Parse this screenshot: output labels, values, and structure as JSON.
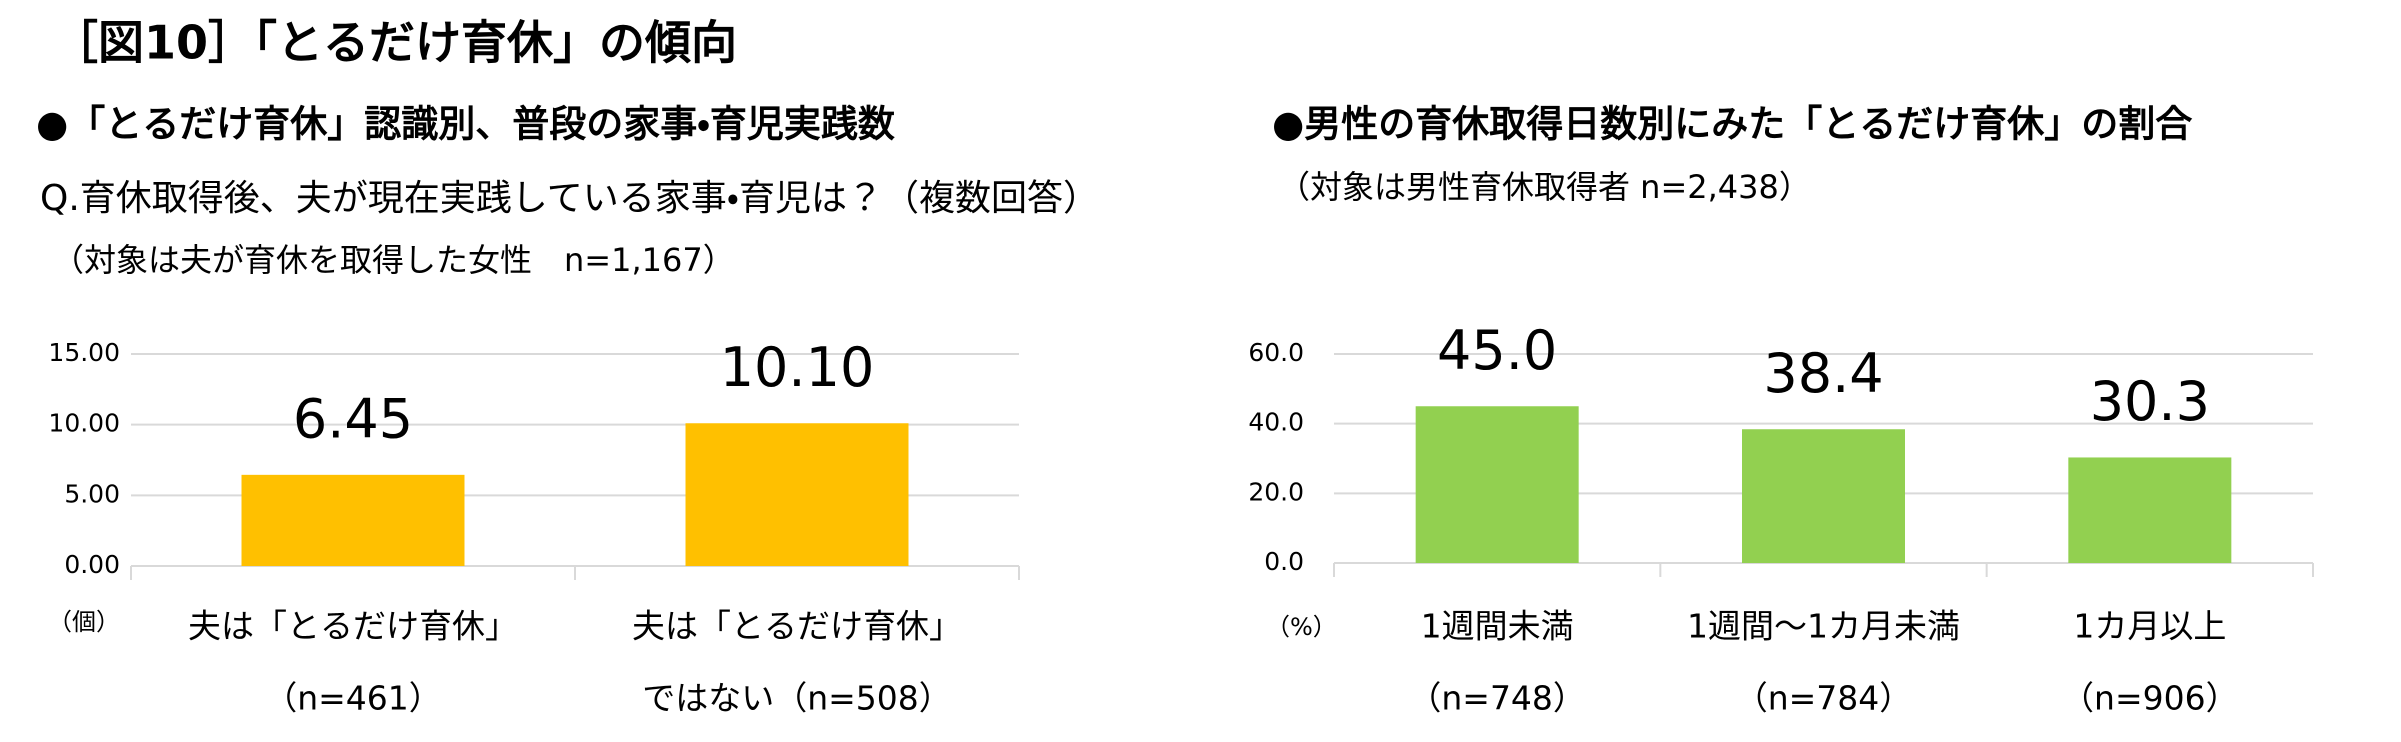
{
  "header": {
    "title": "［図10］「とるだけ育休」の傾向"
  },
  "chart_data": [
    {
      "type": "bar",
      "title": "●「とるだけ育休」認識別、普段の家事・育児実践数",
      "question": "Q.育休取得後、夫が現在実践している家事・育児は？（複数回答）",
      "note": "（対象は夫が育休を取得した女性　n=1,167）",
      "unit_label": "（個）",
      "categories": [
        [
          "夫は「とるだけ育休」",
          "（n=461）"
        ],
        [
          "夫は「とるだけ育休」",
          "ではない（n=508）"
        ]
      ],
      "values": [
        6.45,
        10.1
      ],
      "value_labels": [
        "6.45",
        "10.10"
      ],
      "color": "#ffc000",
      "ylim": [
        0,
        15
      ],
      "yticks": [
        {
          "value": 0,
          "label": "0.00"
        },
        {
          "value": 5,
          "label": "5.00"
        },
        {
          "value": 10,
          "label": "10.00"
        },
        {
          "value": 15,
          "label": "15.00"
        }
      ],
      "grid": true
    },
    {
      "type": "bar",
      "title": "●男性の育休取得日数別にみた「とるだけ育休」の割合",
      "note": "（対象は男性育休取得者 n=2,438）",
      "unit_label": "（%）",
      "categories": [
        [
          "1週間未満",
          "（n=748）"
        ],
        [
          "1週間～1カ月未満",
          "（n=784）"
        ],
        [
          "1カ月以上",
          "（n=906）"
        ]
      ],
      "values": [
        45.0,
        38.4,
        30.3
      ],
      "value_labels": [
        "45.0",
        "38.4",
        "30.3"
      ],
      "color": "#92d050",
      "ylim": [
        0,
        60
      ],
      "yticks": [
        {
          "value": 0,
          "label": "0.0"
        },
        {
          "value": 20,
          "label": "20.0"
        },
        {
          "value": 40,
          "label": "40.0"
        },
        {
          "value": 60,
          "label": "60.0"
        }
      ],
      "grid": true
    }
  ]
}
